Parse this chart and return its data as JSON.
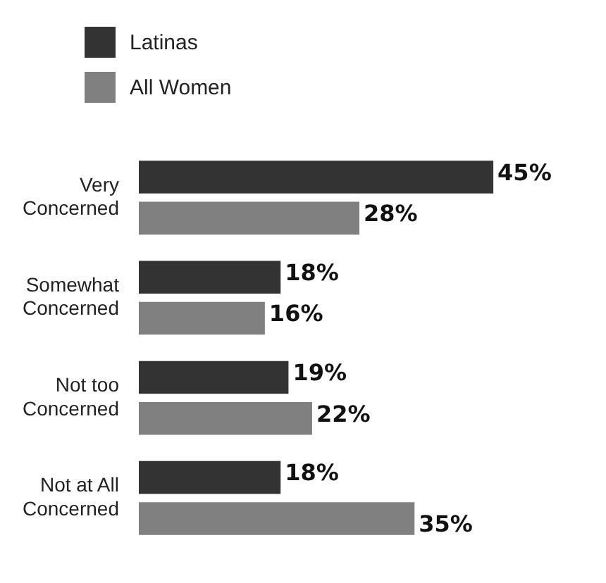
{
  "chart_data": {
    "type": "bar",
    "orientation": "horizontal",
    "legend": "top left",
    "tick_labels": "y",
    "categories": [
      "Very Concerned",
      "Somewhat Concerned",
      "Not too Concerned",
      "Not at All Concerned"
    ],
    "series": [
      {
        "name": "Latinas",
        "color": "#333333",
        "values": [
          45,
          18,
          19,
          18
        ],
        "value_labels": [
          "45%",
          "18%",
          "19%",
          "18%"
        ]
      },
      {
        "name": "All Women",
        "color": "#808080",
        "values": [
          28,
          16,
          22,
          35
        ],
        "value_labels": [
          "28%",
          "16%",
          "22%",
          "35%"
        ]
      }
    ]
  }
}
